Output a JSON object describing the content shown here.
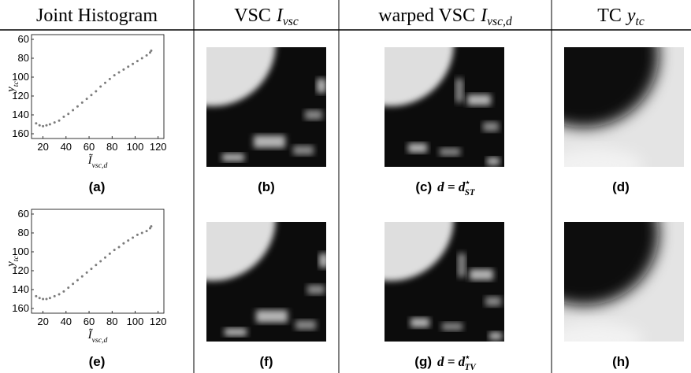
{
  "header": [
    {
      "text": "Joint Histogram"
    },
    {
      "text": "VSC",
      "math": "I",
      "sub": "vsc"
    },
    {
      "text": "warped VSC",
      "math": "I",
      "sub": "vsc,d"
    },
    {
      "text": "TC",
      "math": "y",
      "sub": "tc"
    }
  ],
  "rows": [
    {
      "histogram": {
        "type": "scatter",
        "xlim": [
          10,
          125
        ],
        "ylim": [
          55,
          165
        ],
        "y_inverted": true,
        "xticks": [
          20,
          40,
          60,
          80,
          100,
          120
        ],
        "yticks": [
          60,
          80,
          100,
          120,
          140,
          160
        ],
        "xlabel": {
          "math": "Ĩ",
          "sub": "vsc,d"
        },
        "ylabel": {
          "math": "y",
          "sub": "tc"
        },
        "color": "#444",
        "x": [
          14,
          17,
          20,
          23,
          26,
          30,
          34,
          38,
          42,
          46,
          50,
          54,
          58,
          62,
          66,
          70,
          74,
          78,
          82,
          86,
          90,
          94,
          98,
          102,
          106,
          110,
          113,
          114
        ],
        "y": [
          149,
          151,
          152,
          151,
          150,
          148,
          146,
          142,
          139,
          135,
          131,
          127,
          123,
          119,
          115,
          110,
          106,
          102,
          98,
          95,
          92,
          89,
          86,
          83,
          80,
          77,
          74,
          72
        ]
      },
      "captions": [
        {
          "label": "(a)"
        },
        {
          "label": "(b)"
        },
        {
          "label": "(c)",
          "math": "d = d",
          "sup": "⋆",
          "sub": "ST"
        },
        {
          "label": "(d)"
        }
      ]
    },
    {
      "histogram": {
        "type": "scatter",
        "xlim": [
          10,
          125
        ],
        "ylim": [
          55,
          165
        ],
        "y_inverted": true,
        "xticks": [
          20,
          40,
          60,
          80,
          100,
          120
        ],
        "yticks": [
          60,
          80,
          100,
          120,
          140,
          160
        ],
        "xlabel": {
          "math": "Ĩ",
          "sub": "vsc,d"
        },
        "ylabel": {
          "math": "y",
          "sub": "tc"
        },
        "color": "#444",
        "x": [
          14,
          17,
          20,
          23,
          26,
          30,
          34,
          38,
          42,
          46,
          50,
          54,
          58,
          62,
          66,
          70,
          74,
          78,
          82,
          86,
          90,
          94,
          98,
          102,
          106,
          110,
          113,
          114
        ],
        "y": [
          147,
          149,
          150,
          150,
          149,
          147,
          145,
          142,
          138,
          134,
          130,
          126,
          122,
          118,
          114,
          110,
          106,
          102,
          98,
          95,
          91,
          88,
          85,
          82,
          80,
          78,
          75,
          73
        ]
      },
      "captions": [
        {
          "label": "(e)"
        },
        {
          "label": "(f)"
        },
        {
          "label": "(g)",
          "math": "d = d",
          "sup": "⋆",
          "sub": "TV"
        },
        {
          "label": "(h)"
        }
      ]
    }
  ]
}
